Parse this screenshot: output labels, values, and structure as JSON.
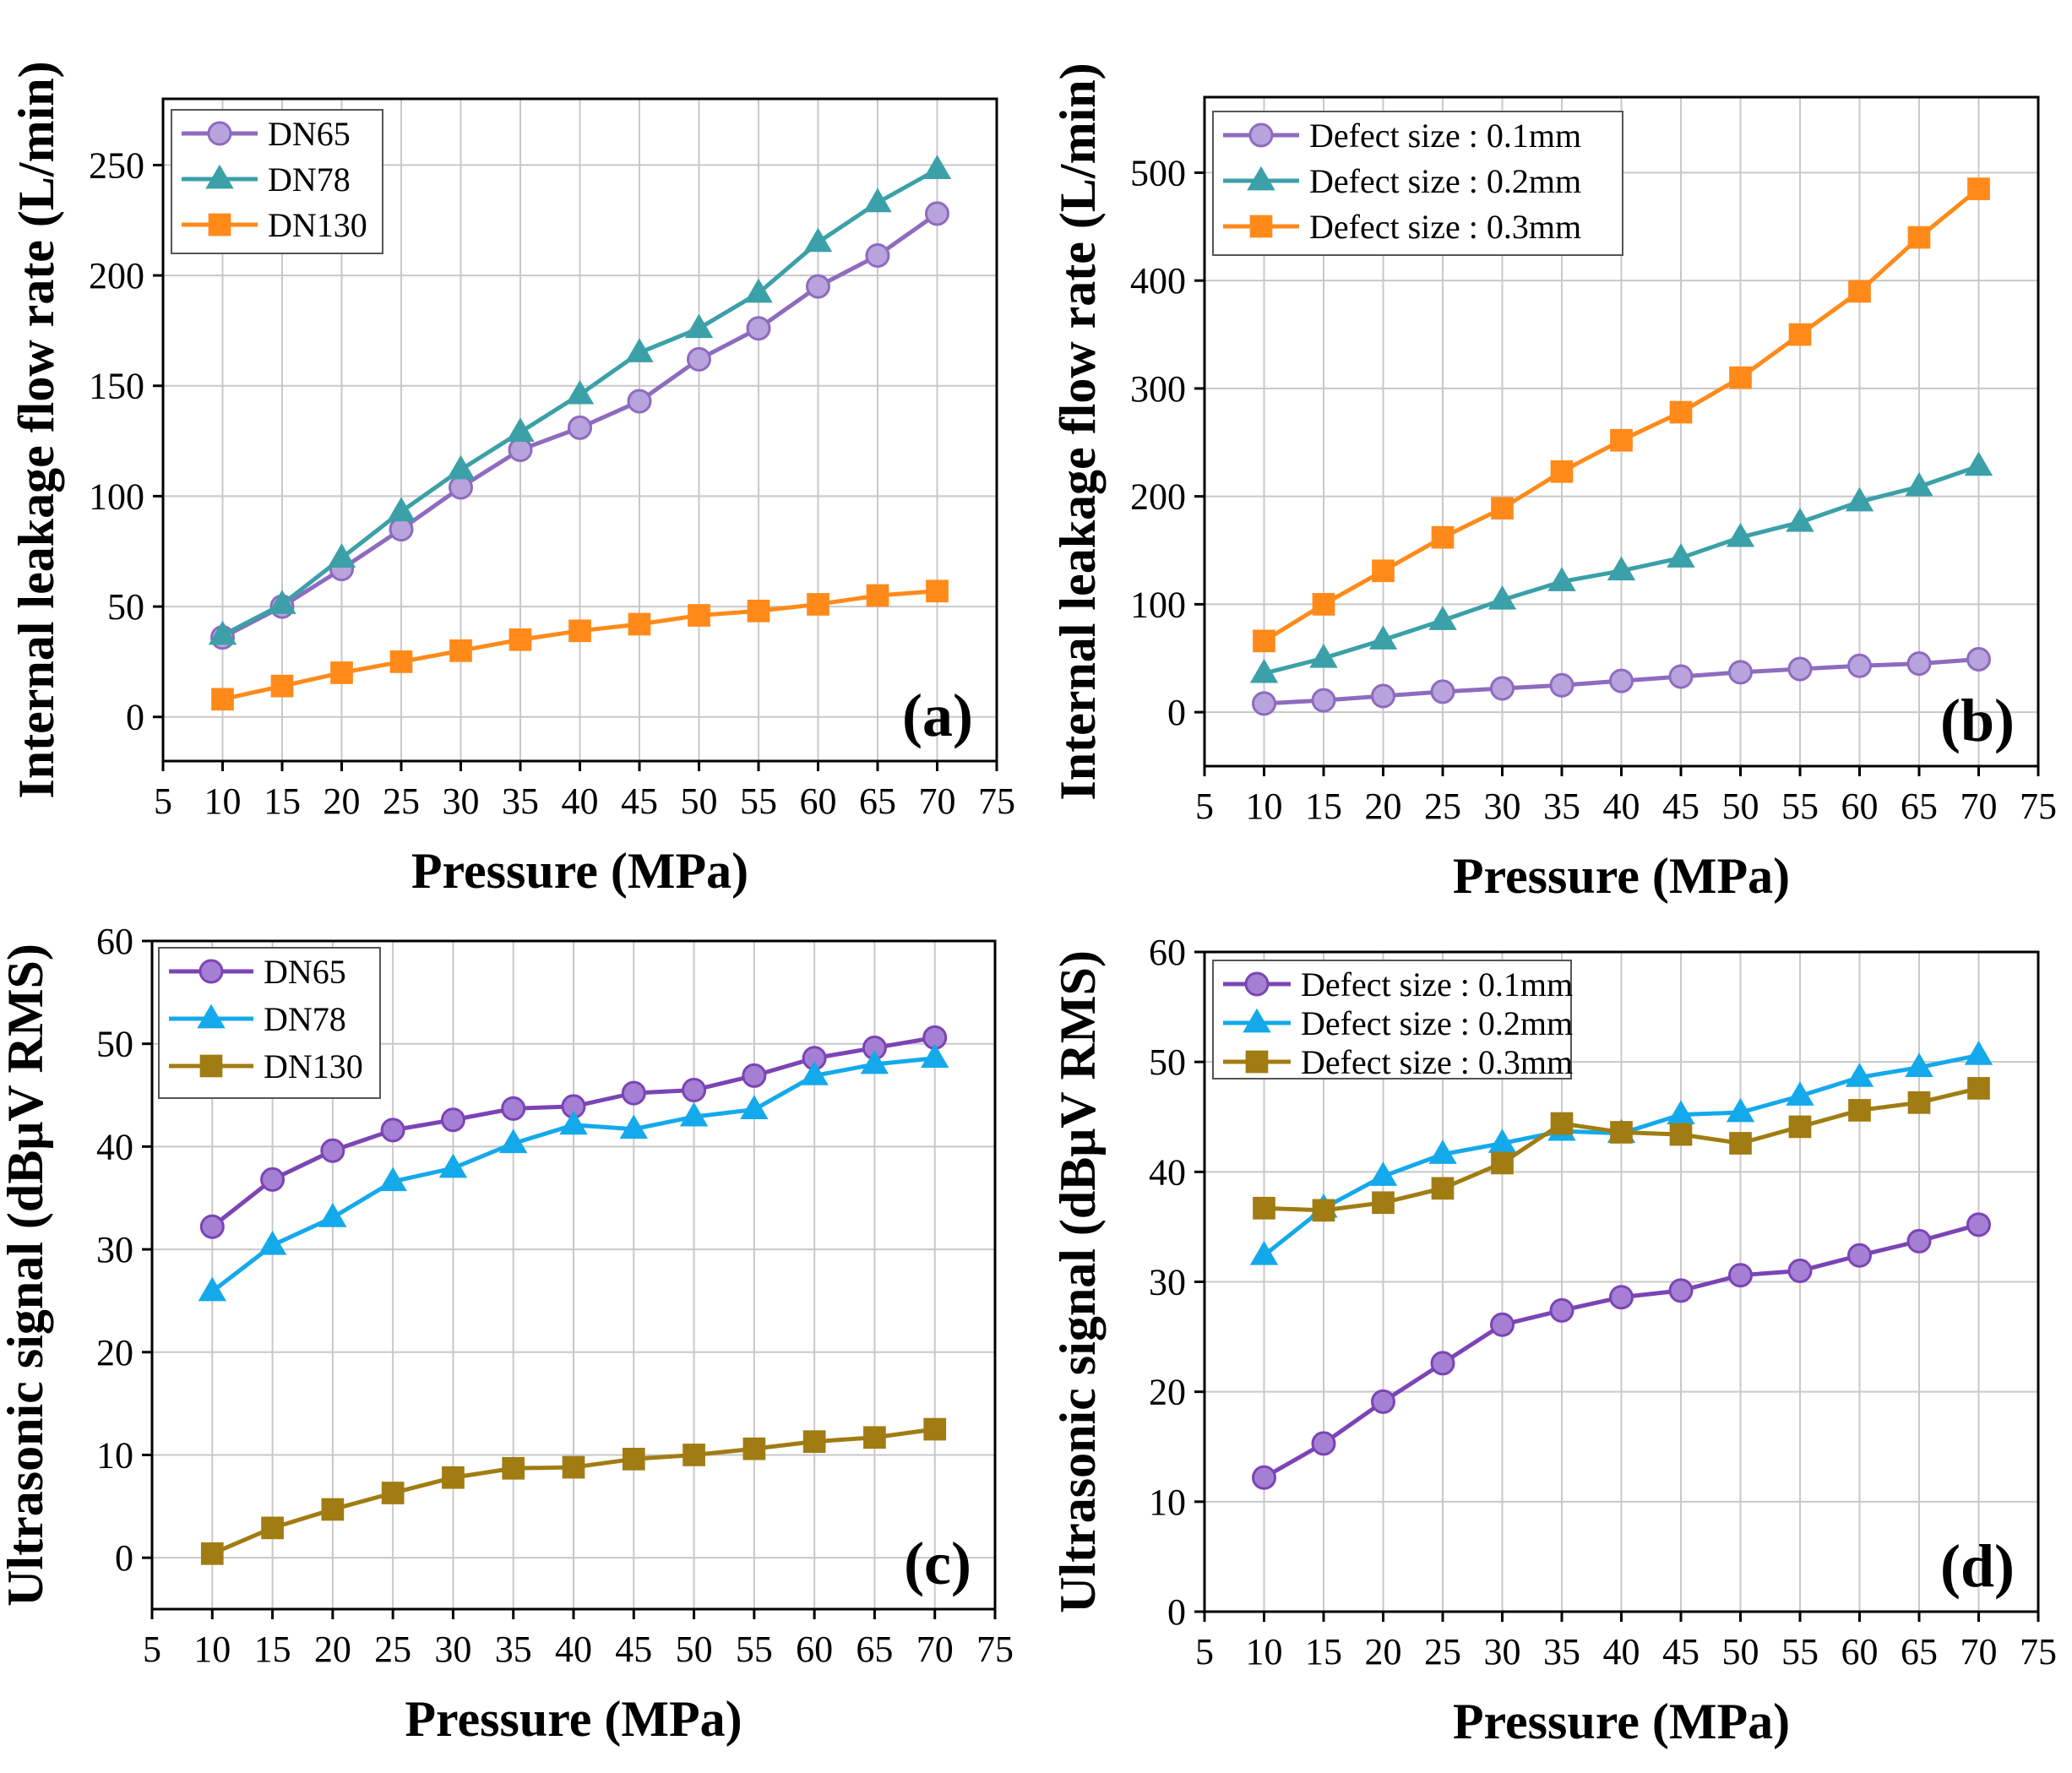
{
  "chart_data": [
    {
      "id": "a",
      "type": "line",
      "panel_label": "(a)",
      "xlabel": "Pressure (MPa)",
      "ylabel": "Internal leakage flow rate (L/min)",
      "xlim": [
        5,
        75
      ],
      "ylim": [
        -20,
        280
      ],
      "xticks": [
        5,
        10,
        15,
        20,
        25,
        30,
        35,
        40,
        45,
        50,
        55,
        60,
        65,
        70,
        75
      ],
      "yticks": [
        0,
        50,
        100,
        150,
        200,
        250
      ],
      "grid": true,
      "legend_position": "top-left",
      "x": [
        10,
        15,
        20,
        25,
        30,
        35,
        40,
        45,
        50,
        55,
        60,
        65,
        70
      ],
      "series": [
        {
          "name": "DN65",
          "color": "#8e6bbf",
          "fill": "#b9a3dd",
          "marker": "circle",
          "values": [
            36,
            50,
            67,
            85,
            104,
            121,
            131,
            143,
            162,
            176,
            195,
            209,
            228
          ]
        },
        {
          "name": "DN78",
          "color": "#3ba0a8",
          "fill": "#3ba0a8",
          "marker": "triangle",
          "values": [
            37,
            51,
            72,
            93,
            112,
            129,
            146,
            165,
            176,
            192,
            215,
            233,
            248
          ]
        },
        {
          "name": "DN130",
          "color": "#ff8a1a",
          "fill": "#ff8a1a",
          "marker": "square",
          "values": [
            8,
            14,
            20,
            25,
            30,
            35,
            39,
            42,
            46,
            48,
            51,
            55,
            57
          ]
        }
      ]
    },
    {
      "id": "b",
      "type": "line",
      "panel_label": "(b)",
      "xlabel": "Pressure (MPa)",
      "ylabel": "Internal leakage flow rate (L/min)",
      "xlim": [
        5,
        75
      ],
      "ylim": [
        -50,
        570
      ],
      "xticks": [
        5,
        10,
        15,
        20,
        25,
        30,
        35,
        40,
        45,
        50,
        55,
        60,
        65,
        70,
        75
      ],
      "yticks": [
        0,
        100,
        200,
        300,
        400,
        500
      ],
      "grid": true,
      "legend_position": "top-left",
      "x": [
        10,
        15,
        20,
        25,
        30,
        35,
        40,
        45,
        50,
        55,
        60,
        65,
        70
      ],
      "series": [
        {
          "name": "Defect size : 0.1mm",
          "color": "#8e6bbf",
          "fill": "#b9a3dd",
          "marker": "circle",
          "values": [
            8,
            11,
            15,
            19,
            22,
            25,
            29,
            33,
            37,
            40,
            43,
            45,
            49
          ]
        },
        {
          "name": "Defect size : 0.2mm",
          "color": "#3ba0a8",
          "fill": "#3ba0a8",
          "marker": "triangle",
          "values": [
            36,
            50,
            67,
            85,
            104,
            121,
            131,
            143,
            162,
            176,
            195,
            209,
            228
          ]
        },
        {
          "name": "Defect size : 0.3mm",
          "color": "#ff8a1a",
          "fill": "#ff8a1a",
          "marker": "square",
          "values": [
            66,
            100,
            131,
            162,
            189,
            223,
            252,
            278,
            310,
            350,
            390,
            440,
            485
          ]
        }
      ]
    },
    {
      "id": "c",
      "type": "line",
      "panel_label": "(c)",
      "xlabel": "Pressure (MPa)",
      "ylabel": "Ultrasonic signal (dBμV RMS)",
      "xlim": [
        5,
        75
      ],
      "ylim": [
        -5,
        60
      ],
      "xticks": [
        5,
        10,
        15,
        20,
        25,
        30,
        35,
        40,
        45,
        50,
        55,
        60,
        65,
        70,
        75
      ],
      "yticks": [
        0,
        10,
        20,
        30,
        40,
        50,
        60
      ],
      "grid": true,
      "legend_position": "top-left",
      "x": [
        10,
        15,
        20,
        25,
        30,
        35,
        40,
        45,
        50,
        55,
        60,
        65,
        70
      ],
      "series": [
        {
          "name": "DN65",
          "color": "#7b44b5",
          "fill": "#a57fd3",
          "marker": "circle",
          "values": [
            32.2,
            36.8,
            39.6,
            41.6,
            42.6,
            43.7,
            43.9,
            45.2,
            45.5,
            46.9,
            48.6,
            49.6,
            50.6
          ]
        },
        {
          "name": "DN78",
          "color": "#14a9ea",
          "fill": "#14a9ea",
          "marker": "triangle",
          "values": [
            25.9,
            30.4,
            33.1,
            36.6,
            37.9,
            40.3,
            42.1,
            41.7,
            42.9,
            43.6,
            46.9,
            48.0,
            48.6
          ]
        },
        {
          "name": "DN130",
          "color": "#a07c12",
          "fill": "#a07c12",
          "marker": "square",
          "values": [
            0.4,
            2.9,
            4.7,
            6.3,
            7.8,
            8.7,
            8.8,
            9.6,
            10.0,
            10.6,
            11.3,
            11.7,
            12.5
          ]
        }
      ]
    },
    {
      "id": "d",
      "type": "line",
      "panel_label": "(d)",
      "xlabel": "Pressure (MPa)",
      "ylabel": "Ultrasonic signal (dBμV RMS)",
      "xlim": [
        5,
        75
      ],
      "ylim": [
        0,
        60
      ],
      "xticks": [
        5,
        10,
        15,
        20,
        25,
        30,
        35,
        40,
        45,
        50,
        55,
        60,
        65,
        70,
        75
      ],
      "yticks": [
        0,
        10,
        20,
        30,
        40,
        50,
        60
      ],
      "grid": true,
      "legend_position": "top-left",
      "x": [
        10,
        15,
        20,
        25,
        30,
        35,
        40,
        45,
        50,
        55,
        60,
        65,
        70
      ],
      "series": [
        {
          "name": "Defect size : 0.1mm",
          "color": "#7b44b5",
          "fill": "#a57fd3",
          "marker": "circle",
          "values": [
            12.2,
            15.3,
            19.1,
            22.6,
            26.1,
            27.4,
            28.6,
            29.2,
            30.6,
            31.0,
            32.4,
            33.7,
            35.2
          ]
        },
        {
          "name": "Defect size : 0.2mm",
          "color": "#14a9ea",
          "fill": "#14a9ea",
          "marker": "triangle",
          "values": [
            32.4,
            36.7,
            39.6,
            41.6,
            42.6,
            43.7,
            43.5,
            45.2,
            45.4,
            46.9,
            48.6,
            49.5,
            50.6
          ]
        },
        {
          "name": "Defect size : 0.3mm",
          "color": "#a07c12",
          "fill": "#a07c12",
          "marker": "square",
          "values": [
            36.7,
            36.5,
            37.2,
            38.5,
            40.8,
            44.4,
            43.6,
            43.4,
            42.6,
            44.1,
            45.6,
            46.3,
            47.6
          ]
        }
      ]
    }
  ]
}
